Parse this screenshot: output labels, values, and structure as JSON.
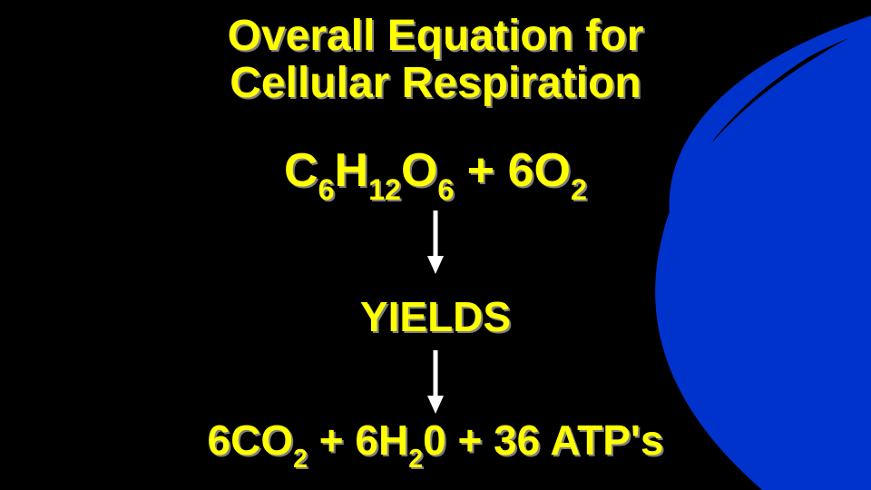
{
  "background_color": "#000000",
  "swoosh_color": "#0033cc",
  "text_color": "#ffff00",
  "text_shadow_color": "#808080",
  "arrow_color": "#ffffff",
  "title": {
    "line1": "Overall Equation for",
    "line2": "Cellular Respiration",
    "font_size": 48
  },
  "reactants": {
    "plain": "C6H12O6  +  6O2",
    "font_size": 52,
    "formula": [
      {
        "t": "C"
      },
      {
        "s": "6"
      },
      {
        "t": "H"
      },
      {
        "s": "12"
      },
      {
        "t": "O"
      },
      {
        "s": "6"
      },
      {
        "t": "  +  6O"
      },
      {
        "s": "2"
      }
    ]
  },
  "yields": {
    "label": "YIELDS",
    "font_size": 46
  },
  "products": {
    "plain": "6CO2 + 6H20 + 36 ATP's",
    "font_size": 46,
    "formula": [
      {
        "t": "6CO"
      },
      {
        "s": "2"
      },
      {
        "t": " + 6H"
      },
      {
        "s": "2"
      },
      {
        "t": "0 + 36 ATP's"
      }
    ]
  },
  "arrows": {
    "width": 22,
    "height": 70,
    "stroke_width": 4
  }
}
